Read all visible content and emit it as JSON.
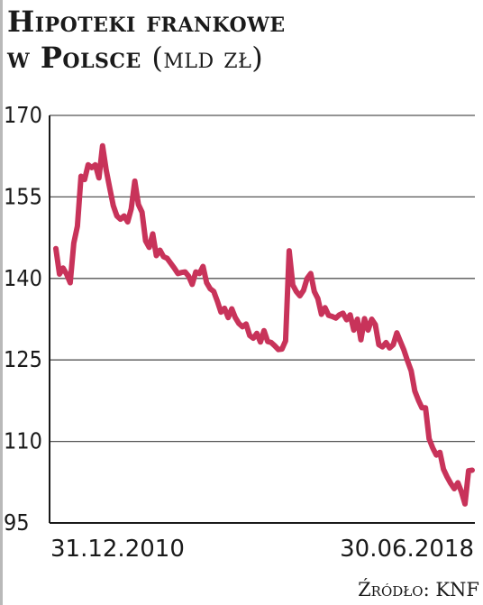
{
  "title_line1": "Hipoteki frankowe",
  "title_line2": "w Polsce",
  "title_unit": "(mld zł)",
  "source": "Źródło: KNF",
  "colors": {
    "line": "#c8335a",
    "grid": "#555555",
    "axis": "#1a1a1a"
  },
  "chart_data": {
    "type": "line",
    "title": "Hipoteki frankowe w Polsce (mld zł)",
    "xlabel": "",
    "ylabel": "",
    "x_tick_labels": [
      "31.12.2010",
      "30.06.2018"
    ],
    "y_ticks": [
      95,
      110,
      125,
      140,
      155,
      170
    ],
    "ylim": [
      95,
      170
    ],
    "grid": true,
    "series": [
      {
        "values": [
          145.5,
          140.8,
          141.9,
          140.8,
          139.2,
          146.5,
          149.6,
          158.8,
          158.2,
          160.9,
          160.4,
          160.9,
          158.5,
          164.4,
          160.0,
          156.7,
          153.4,
          151.5,
          150.9,
          151.5,
          150.4,
          152.8,
          157.9,
          153.6,
          152.2,
          146.9,
          145.7,
          148.2,
          144.2,
          145.2,
          144.0,
          143.7,
          142.8,
          141.9,
          140.9,
          141.1,
          141.2,
          140.4,
          138.9,
          141.2,
          140.9,
          142.2,
          139.2,
          138.1,
          137.6,
          135.8,
          133.8,
          134.5,
          132.8,
          134.4,
          132.8,
          131.7,
          131.1,
          131.6,
          129.5,
          129.0,
          129.9,
          128.3,
          130.4,
          128.4,
          128.2,
          127.6,
          126.9,
          127.0,
          128.5,
          145.1,
          138.8,
          137.6,
          136.8,
          137.8,
          140.0,
          140.9,
          137.6,
          136.3,
          133.4,
          134.6,
          133.2,
          133.0,
          132.7,
          133.3,
          133.6,
          132.4,
          133.3,
          130.5,
          132.5,
          128.7,
          132.6,
          130.5,
          132.5,
          131.5,
          127.8,
          127.4,
          128.2,
          127.2,
          127.8,
          130.0,
          128.4,
          126.8,
          124.8,
          123.0,
          119.3,
          117.6,
          116.2,
          116.2,
          110.5,
          108.8,
          107.5,
          108.0,
          104.9,
          103.5,
          102.3,
          101.3,
          102.4,
          100.7,
          98.5,
          104.6,
          104.7
        ]
      }
    ]
  }
}
